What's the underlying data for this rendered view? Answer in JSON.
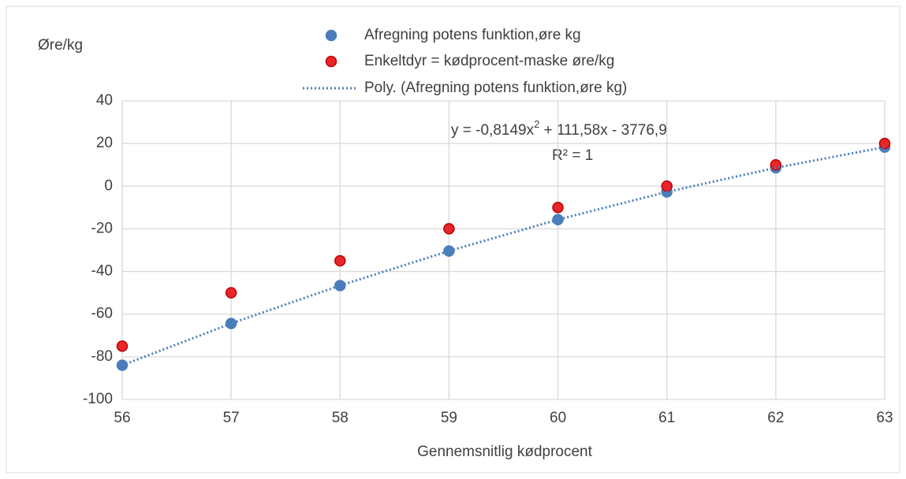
{
  "chart_data": {
    "type": "scatter",
    "y_axis_label": "Øre/kg",
    "x_axis_label": "Gennemsnitlig kødprocent",
    "x": [
      56,
      57,
      58,
      59,
      60,
      61,
      62,
      63
    ],
    "series": [
      {
        "name": "Afregning potens funktion,øre kg",
        "color": "#4a7ebb",
        "style": "marker",
        "values": [
          -84,
          -64.4,
          -46.6,
          -30.4,
          -15.7,
          -2.7,
          8.6,
          18.3
        ]
      },
      {
        "name": "Enkeltdyr = kødprocent-maske øre/kg",
        "color": "#e8262a",
        "style": "marker",
        "values": [
          -75,
          -50,
          -35,
          -20,
          -10,
          0,
          10,
          20
        ]
      },
      {
        "name": "Poly. (Afregning potens funktion,øre kg)",
        "color": "#4a7ebb",
        "style": "dotted",
        "values": [
          -84,
          -64.4,
          -46.6,
          -30.4,
          -15.7,
          -2.7,
          8.6,
          18.3
        ]
      }
    ],
    "equation": [
      "y = -0,8149x",
      "2",
      " + 111,58x - 3776,9"
    ],
    "r_squared": "R² = 1",
    "xlim": [
      56,
      63
    ],
    "xticks": [
      56,
      57,
      58,
      59,
      60,
      61,
      62,
      63
    ],
    "ylim": [
      -100,
      40
    ],
    "yticks": [
      -100,
      -80,
      -60,
      -40,
      -20,
      0,
      20,
      40
    ],
    "grid": true,
    "legend": "top"
  }
}
